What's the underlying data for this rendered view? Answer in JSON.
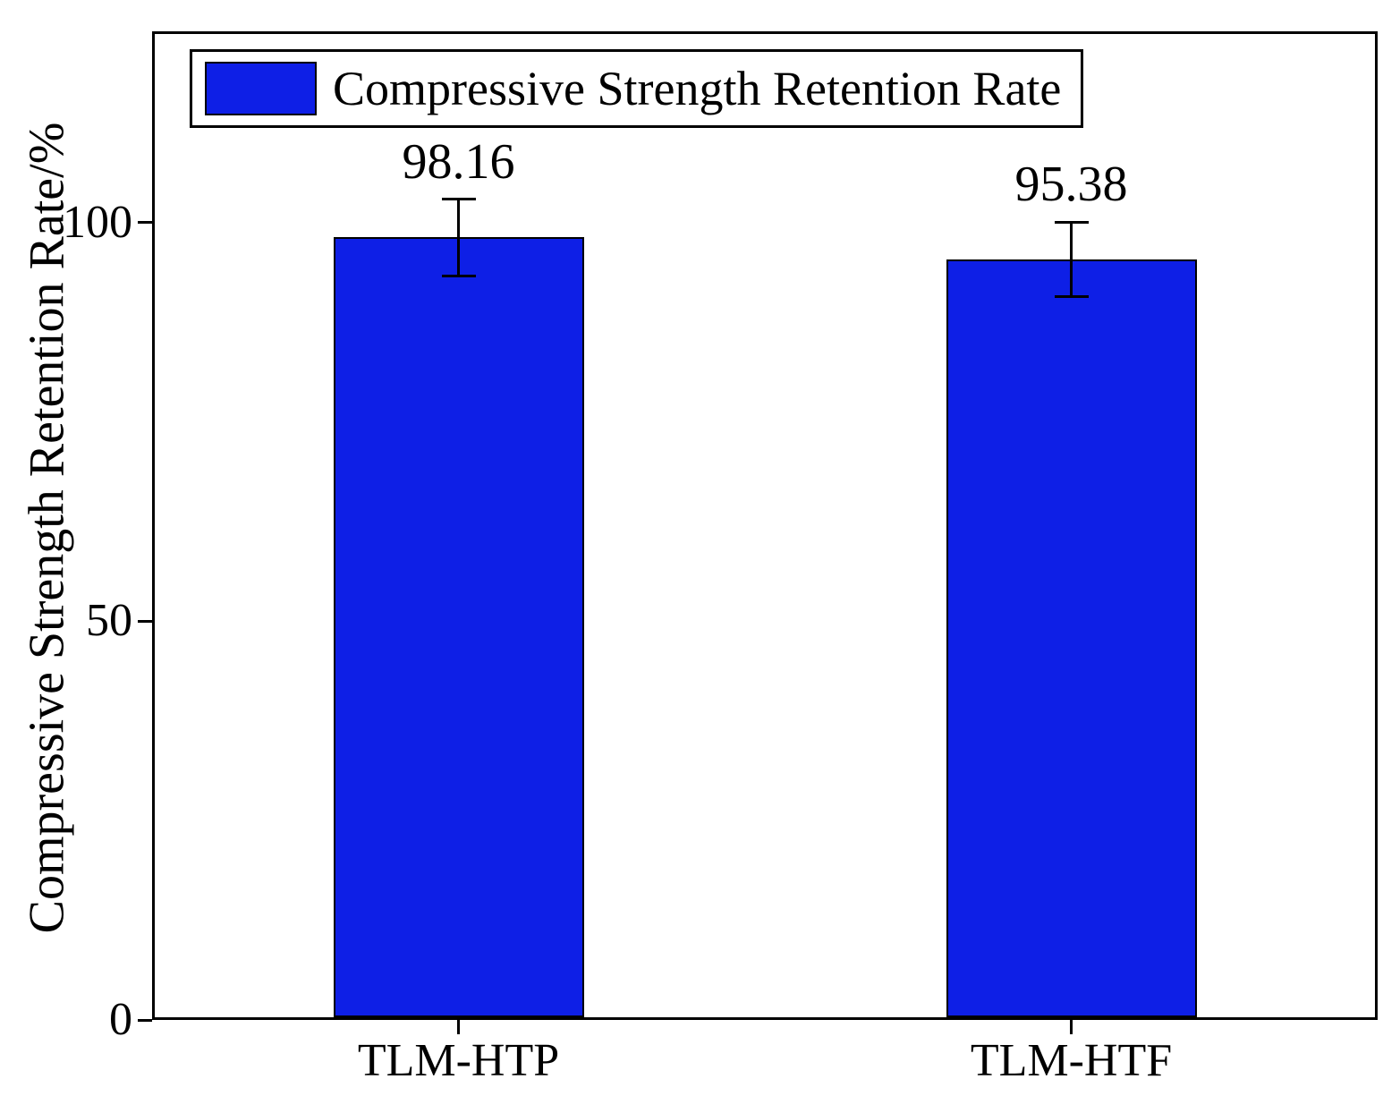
{
  "figure": {
    "ylabel": "Compressive Strength Retention Rate/%"
  },
  "chart_data": {
    "type": "bar",
    "title": "",
    "categories": [
      "TLM-HTP",
      "TLM-HTF"
    ],
    "values": [
      98.16,
      95.38
    ],
    "errors": [
      4.8,
      4.7
    ],
    "value_labels": [
      "98.16",
      "95.38"
    ],
    "ylabel": "Compressive Strength Retention Rate/%",
    "xlabel": "",
    "yticks": [
      0,
      50,
      100
    ],
    "ylim": [
      0,
      124
    ],
    "bar_color": "#0e1fe6",
    "bar_edge_color": "#000000",
    "error_bar_color": "#000000",
    "legend": "Compressive Strength Retention Rate",
    "legend_position": "top-left",
    "grid": false
  }
}
